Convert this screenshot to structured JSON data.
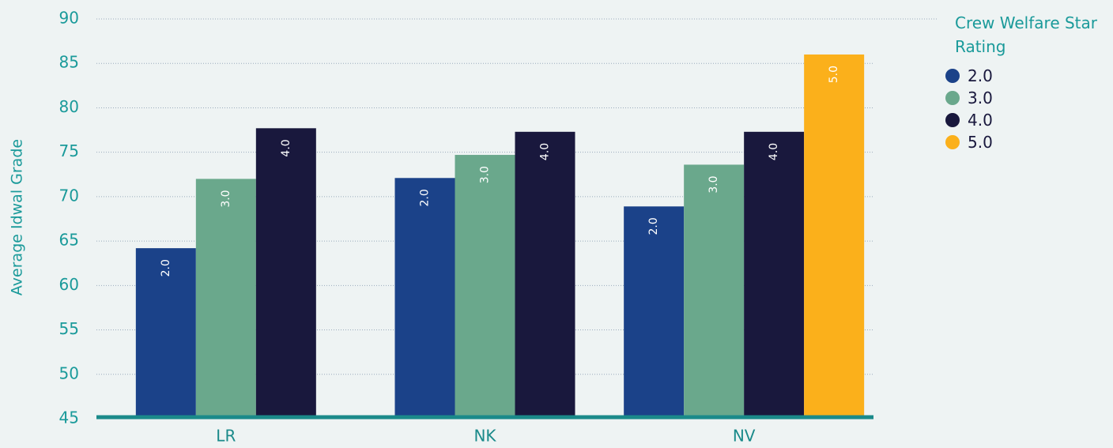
{
  "chart_data": {
    "type": "bar",
    "y_label": "Average Idwal Grade",
    "legend_title": "Crew Welfare Star Rating",
    "categories": [
      "LR",
      "NK",
      "NV"
    ],
    "series": [
      {
        "name": "2.0",
        "color": "#1b4289",
        "values": [
          64.2,
          72.1,
          68.9
        ]
      },
      {
        "name": "3.0",
        "color": "#6aa88c",
        "values": [
          72.0,
          74.7,
          73.6
        ]
      },
      {
        "name": "4.0",
        "color": "#19183d",
        "values": [
          77.7,
          77.3,
          77.3
        ]
      },
      {
        "name": "5.0",
        "color": "#fbb01b",
        "values": [
          null,
          null,
          86.0
        ]
      }
    ],
    "ylim": [
      45,
      90
    ],
    "yticks": [
      45,
      50,
      55,
      60,
      65,
      70,
      75,
      80,
      85,
      90
    ],
    "grid": true
  }
}
